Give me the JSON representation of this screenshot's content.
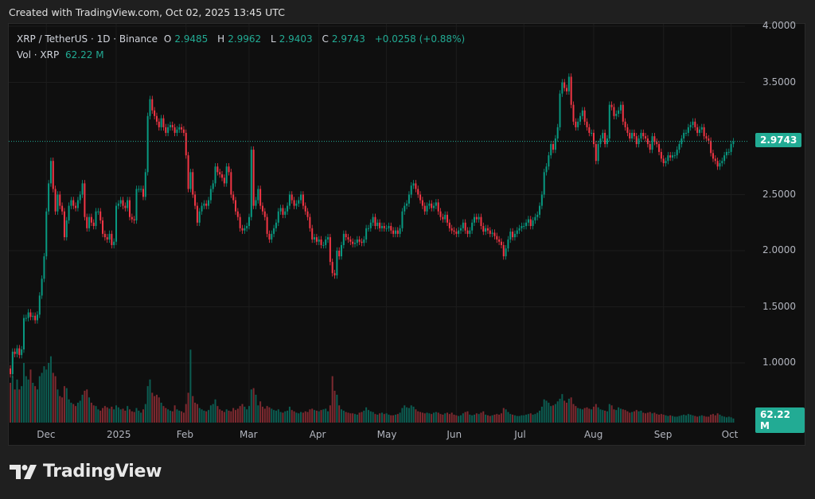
{
  "header": {
    "created": "Created with TradingView.com, Oct 02, 2025 13:45 UTC"
  },
  "legend": {
    "symbol": "XRP / TetherUS · 1D · Binance",
    "open_label": "O",
    "open": "2.9485",
    "high_label": "H",
    "high": "2.9962",
    "low_label": "L",
    "low": "2.9403",
    "close_label": "C",
    "close": "2.9743",
    "change": "+0.0258 (+0.88%)",
    "vol_label": "Vol · XRP",
    "vol_value": "62.22 M"
  },
  "price_tag": "2.9743",
  "volume_tag": "62.22 M",
  "logo": {
    "text": "TradingView"
  },
  "colors": {
    "up": "#089981",
    "down": "#f23645",
    "accent": "#22ab94",
    "background": "#0f0f0f"
  },
  "chart_data": {
    "type": "candlestick",
    "interval": "1D",
    "start_date": "2024-11-15",
    "end_date": "2025-10-02",
    "first_open": 0.95,
    "ylim": [
      0.8,
      4.0
    ],
    "y_ticks": [
      "4.0000",
      "3.5000",
      "2.5000",
      "2.0000",
      "1.5000",
      "1.0000"
    ],
    "y_tick_values": [
      4.0,
      3.5,
      2.5,
      2.0,
      1.5,
      1.0
    ],
    "x_ticks": [
      {
        "label": "Dec",
        "date": "2024-12-01"
      },
      {
        "label": "2025",
        "date": "2025-01-01"
      },
      {
        "label": "Feb",
        "date": "2025-02-01"
      },
      {
        "label": "Mar",
        "date": "2025-03-01"
      },
      {
        "label": "Apr",
        "date": "2025-04-01"
      },
      {
        "label": "May",
        "date": "2025-05-01"
      },
      {
        "label": "Jun",
        "date": "2025-06-01"
      },
      {
        "label": "Jul",
        "date": "2025-07-01"
      },
      {
        "label": "Aug",
        "date": "2025-08-01"
      },
      {
        "label": "Sep",
        "date": "2025-09-01"
      },
      {
        "label": "Oct",
        "date": "2025-10-01"
      }
    ],
    "grid": true,
    "last_price": 2.9743,
    "close": [
      0.9,
      1.1,
      1.08,
      1.13,
      1.07,
      1.12,
      1.4,
      1.4,
      1.45,
      1.41,
      1.42,
      1.38,
      1.43,
      1.6,
      1.75,
      1.95,
      2.35,
      2.6,
      2.8,
      2.55,
      2.35,
      2.5,
      2.4,
      2.35,
      2.12,
      2.27,
      2.4,
      2.45,
      2.4,
      2.38,
      2.45,
      2.5,
      2.6,
      2.3,
      2.2,
      2.3,
      2.25,
      2.22,
      2.35,
      2.35,
      2.27,
      2.15,
      2.12,
      2.1,
      2.15,
      2.05,
      2.08,
      2.4,
      2.42,
      2.45,
      2.4,
      2.38,
      2.45,
      2.3,
      2.28,
      2.27,
      2.55,
      2.55,
      2.55,
      2.48,
      2.7,
      3.2,
      3.35,
      3.25,
      3.2,
      3.15,
      3.1,
      3.18,
      3.1,
      3.05,
      3.1,
      3.12,
      3.1,
      3.05,
      3.08,
      3.1,
      3.08,
      3.05,
      2.85,
      2.55,
      2.7,
      2.5,
      2.4,
      2.25,
      2.35,
      2.4,
      2.42,
      2.4,
      2.45,
      2.55,
      2.6,
      2.75,
      2.7,
      2.68,
      2.65,
      2.6,
      2.75,
      2.7,
      2.5,
      2.45,
      2.35,
      2.3,
      2.2,
      2.18,
      2.2,
      2.22,
      2.3,
      2.9,
      2.4,
      2.45,
      2.55,
      2.4,
      2.35,
      2.3,
      2.15,
      2.1,
      2.15,
      2.2,
      2.25,
      2.35,
      2.38,
      2.32,
      2.35,
      2.4,
      2.5,
      2.45,
      2.4,
      2.42,
      2.45,
      2.5,
      2.4,
      2.35,
      2.3,
      2.2,
      2.1,
      2.12,
      2.08,
      2.1,
      2.05,
      2.05,
      2.1,
      2.12,
      1.9,
      1.8,
      1.78,
      2.0,
      1.95,
      2.05,
      2.15,
      2.12,
      2.1,
      2.08,
      2.06,
      2.07,
      2.1,
      2.08,
      2.07,
      2.1,
      2.2,
      2.2,
      2.25,
      2.3,
      2.22,
      2.25,
      2.2,
      2.22,
      2.2,
      2.2,
      2.22,
      2.18,
      2.15,
      2.18,
      2.15,
      2.2,
      2.35,
      2.4,
      2.42,
      2.5,
      2.58,
      2.6,
      2.55,
      2.5,
      2.45,
      2.4,
      2.35,
      2.4,
      2.42,
      2.38,
      2.4,
      2.43,
      2.35,
      2.3,
      2.28,
      2.32,
      2.25,
      2.2,
      2.18,
      2.17,
      2.15,
      2.18,
      2.2,
      2.25,
      2.18,
      2.15,
      2.18,
      2.25,
      2.3,
      2.28,
      2.3,
      2.22,
      2.17,
      2.2,
      2.18,
      2.15,
      2.16,
      2.13,
      2.1,
      2.08,
      2.05,
      1.95,
      2.02,
      2.1,
      2.17,
      2.12,
      2.15,
      2.18,
      2.2,
      2.22,
      2.22,
      2.25,
      2.28,
      2.22,
      2.27,
      2.3,
      2.32,
      2.4,
      2.5,
      2.7,
      2.75,
      2.85,
      2.95,
      2.9,
      3.0,
      3.1,
      3.4,
      3.5,
      3.45,
      3.42,
      3.55,
      3.3,
      3.15,
      3.1,
      3.15,
      3.2,
      3.25,
      3.15,
      3.1,
      3.05,
      3.05,
      2.95,
      2.8,
      2.95,
      3.0,
      3.05,
      2.95,
      3.0,
      3.3,
      3.28,
      3.2,
      3.22,
      3.25,
      3.3,
      3.15,
      3.1,
      3.05,
      3.0,
      3.05,
      3.02,
      2.95,
      3.0,
      3.05,
      3.02,
      3.0,
      2.95,
      2.9,
      3.02,
      2.97,
      2.95,
      2.88,
      2.82,
      2.78,
      2.8,
      2.85,
      2.83,
      2.85,
      2.85,
      2.9,
      2.95,
      3.0,
      3.05,
      3.05,
      3.1,
      3.12,
      3.15,
      3.1,
      3.05,
      3.08,
      3.1,
      3.02,
      3.0,
      2.98,
      2.87,
      2.82,
      2.8,
      2.75,
      2.78,
      2.8,
      2.85,
      2.88,
      2.88,
      2.95,
      2.9743
    ],
    "volume_millions": [
      600,
      700,
      500,
      650,
      500,
      550,
      900,
      700,
      650,
      800,
      600,
      550,
      500,
      700,
      750,
      850,
      800,
      900,
      1000,
      750,
      700,
      500,
      400,
      380,
      550,
      520,
      350,
      300,
      280,
      250,
      300,
      330,
      420,
      480,
      500,
      380,
      300,
      260,
      250,
      200,
      180,
      220,
      250,
      230,
      210,
      240,
      200,
      260,
      230,
      200,
      210,
      180,
      250,
      200,
      170,
      160,
      220,
      180,
      150,
      200,
      280,
      550,
      650,
      450,
      400,
      420,
      380,
      300,
      250,
      220,
      200,
      180,
      170,
      260,
      200,
      180,
      170,
      150,
      280,
      450,
      1100,
      400,
      300,
      280,
      220,
      200,
      180,
      170,
      190,
      260,
      280,
      350,
      250,
      200,
      180,
      160,
      200,
      180,
      170,
      220,
      190,
      210,
      250,
      280,
      240,
      200,
      250,
      500,
      520,
      420,
      260,
      320,
      240,
      210,
      250,
      230,
      210,
      190,
      180,
      200,
      160,
      150,
      170,
      180,
      240,
      190,
      170,
      150,
      140,
      160,
      150,
      170,
      160,
      200,
      210,
      190,
      180,
      170,
      190,
      200,
      210,
      170,
      260,
      700,
      480,
      420,
      260,
      200,
      180,
      160,
      150,
      140,
      140,
      130,
      120,
      150,
      160,
      180,
      230,
      190,
      170,
      160,
      130,
      120,
      140,
      150,
      130,
      140,
      120,
      110,
      110,
      120,
      130,
      150,
      220,
      260,
      230,
      220,
      260,
      240,
      200,
      170,
      160,
      150,
      140,
      150,
      140,
      130,
      150,
      160,
      150,
      130,
      120,
      140,
      150,
      130,
      150,
      120,
      110,
      100,
      110,
      140,
      160,
      170,
      120,
      110,
      120,
      140,
      130,
      150,
      170,
      120,
      110,
      100,
      110,
      120,
      130,
      120,
      140,
      220,
      200,
      160,
      130,
      120,
      110,
      100,
      100,
      110,
      110,
      120,
      130,
      140,
      120,
      130,
      150,
      180,
      240,
      350,
      330,
      300,
      250,
      260,
      280,
      320,
      360,
      430,
      330,
      300,
      360,
      380,
      280,
      250,
      220,
      210,
      200,
      220,
      230,
      210,
      200,
      240,
      280,
      230,
      200,
      190,
      180,
      170,
      280,
      260,
      200,
      190,
      230,
      210,
      200,
      190,
      170,
      150,
      160,
      170,
      190,
      170,
      180,
      150,
      140,
      150,
      160,
      140,
      150,
      130,
      120,
      130,
      120,
      110,
      100,
      110,
      100,
      90,
      90,
      100,
      110,
      120,
      110,
      130,
      120,
      110,
      100,
      90,
      100,
      110,
      100,
      90,
      90,
      120,
      130,
      110,
      140,
      120,
      100,
      90,
      80,
      90,
      80,
      62.22
    ]
  }
}
